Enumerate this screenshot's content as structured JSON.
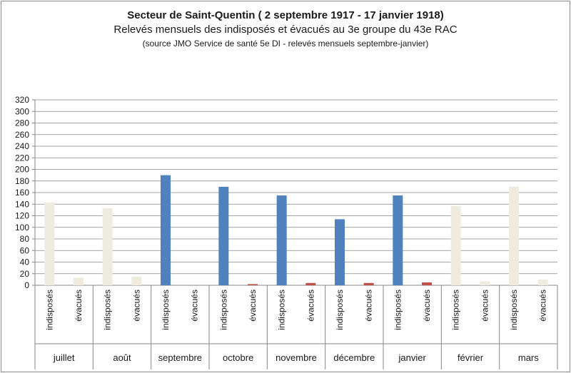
{
  "chart_data": {
    "type": "bar",
    "title": "Secteur de Saint-Quentin ( 2 septembre 1917 - 17 janvier 1918)",
    "subtitle": "Relevés mensuels des  indisposés et évacués au 3e groupe du 43e RAC",
    "source": "(source JMO  Service de santé  5e DI - relevés mensuels septembre-janvier)",
    "xlabel": "",
    "ylabel": "",
    "ylim": [
      0,
      320
    ],
    "yticks": [
      0,
      20,
      40,
      60,
      80,
      100,
      120,
      140,
      160,
      180,
      200,
      220,
      240,
      260,
      280,
      300,
      320
    ],
    "grid": true,
    "legend": "none",
    "categories": [
      "juillet",
      "août",
      "septembre",
      "octobre",
      "novembre",
      "décembre",
      "janvier",
      "février",
      "mars"
    ],
    "sub_categories": [
      "indisposés",
      "évacués"
    ],
    "in_sector": [
      false,
      false,
      true,
      true,
      true,
      true,
      true,
      false,
      false
    ],
    "series": [
      {
        "name": "indisposés",
        "values": [
          143,
          133,
          190,
          170,
          155,
          114,
          155,
          137,
          170
        ]
      },
      {
        "name": "évacués",
        "values": [
          13,
          15,
          0,
          2,
          4,
          4,
          5,
          7,
          10
        ]
      }
    ],
    "colors": {
      "indisposes_sector": "#4f81bd",
      "evacues_sector": "#c0504d",
      "outside_sector": "#eeece1",
      "axis": "#868686",
      "grid": "#868686"
    }
  }
}
